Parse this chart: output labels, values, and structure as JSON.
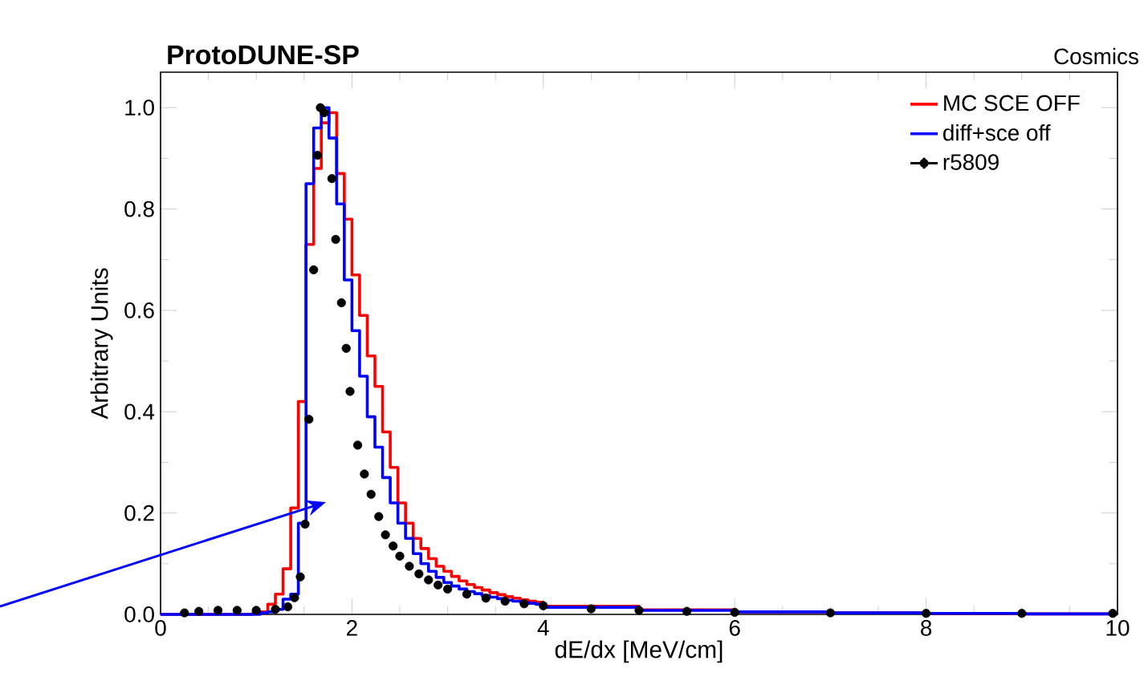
{
  "chart_data": {
    "type": "histogram",
    "title": "ProtoDUNE-SP",
    "xlabel": "dE/dx [MeV/cm]",
    "ylabel": "Arbitrary Units",
    "annotations": [
      "Cosmics"
    ],
    "bins": [
      0,
      0.08,
      0.16,
      0.24,
      0.32,
      0.4,
      0.48,
      0.56,
      0.64,
      0.72,
      0.8,
      0.88,
      0.96,
      1.04,
      1.12,
      1.2,
      1.28,
      1.36,
      1.44,
      1.52,
      1.6,
      1.68,
      1.76,
      1.84,
      1.92,
      2,
      2.08,
      2.16,
      2.24,
      2.32,
      2.4,
      2.48,
      2.56,
      2.64,
      2.72,
      2.8,
      2.88,
      2.96,
      3.04,
      3.12,
      3.2,
      3.28,
      3.36,
      3.44,
      3.52,
      3.6,
      3.68,
      3.76,
      3.84,
      3.92,
      4,
      5,
      6,
      7,
      8,
      9,
      10
    ],
    "series": [
      {
        "name": "MC SCE OFF",
        "color": "#ff0000",
        "values": [
          0,
          0,
          0,
          0,
          0,
          0,
          0,
          0,
          0,
          0,
          0,
          0,
          0.002,
          0.005,
          0.02,
          0.04,
          0.09,
          0.21,
          0.42,
          0.73,
          0.88,
          0.97,
          0.99,
          0.87,
          0.78,
          0.67,
          0.59,
          0.51,
          0.45,
          0.36,
          0.29,
          0.22,
          0.18,
          0.15,
          0.13,
          0.11,
          0.095,
          0.085,
          0.075,
          0.066,
          0.059,
          0.053,
          0.048,
          0.043,
          0.039,
          0.035,
          0.032,
          0.029,
          0.026,
          0.024,
          0.016,
          0.009,
          0.005,
          0.003,
          0.002,
          0.001
        ]
      },
      {
        "name": "diff+sce off",
        "color": "#0000ff",
        "values": [
          0,
          0,
          0,
          0,
          0,
          0,
          0,
          0,
          0,
          0,
          0,
          0,
          0,
          0.003,
          0.005,
          0.01,
          0.03,
          0.04,
          0.18,
          0.85,
          0.96,
          1.0,
          0.94,
          0.81,
          0.66,
          0.56,
          0.47,
          0.39,
          0.33,
          0.27,
          0.22,
          0.18,
          0.15,
          0.12,
          0.1,
          0.085,
          0.073,
          0.063,
          0.056,
          0.05,
          0.045,
          0.041,
          0.037,
          0.034,
          0.031,
          0.028,
          0.026,
          0.024,
          0.022,
          0.02,
          0.014,
          0.008,
          0.005,
          0.003,
          0.002,
          0.001
        ]
      },
      {
        "name": "r5809",
        "color": "#000000",
        "type": "scatter",
        "marker": "circle",
        "x": [
          0.25,
          0.4,
          0.6,
          0.8,
          1.0,
          1.2,
          1.33,
          1.4,
          1.46,
          1.51,
          1.55,
          1.6,
          1.64,
          1.67,
          1.71,
          1.79,
          1.83,
          1.89,
          1.94,
          1.98,
          2.06,
          2.13,
          2.2,
          2.28,
          2.35,
          2.43,
          2.5,
          2.6,
          2.7,
          2.8,
          2.9,
          3.0,
          3.2,
          3.4,
          3.6,
          3.8,
          4.0,
          4.5,
          5.0,
          5.5,
          6,
          7,
          8,
          9,
          9.95
        ],
        "values": [
          0.003,
          0.006,
          0.008,
          0.008,
          0.008,
          0.01,
          0.015,
          0.033,
          0.074,
          0.178,
          0.385,
          0.68,
          0.906,
          1.0,
          0.99,
          0.86,
          0.74,
          0.615,
          0.525,
          0.44,
          0.334,
          0.277,
          0.237,
          0.193,
          0.157,
          0.135,
          0.115,
          0.095,
          0.08,
          0.068,
          0.058,
          0.05,
          0.04,
          0.032,
          0.026,
          0.021,
          0.017,
          0.011,
          0.008,
          0.006,
          0.004,
          0.003,
          0.002,
          0.002,
          0.002
        ]
      }
    ],
    "xlim": [
      0,
      10
    ],
    "ylim": [
      0,
      1.07
    ],
    "xticks": [
      0,
      2,
      4,
      6,
      8,
      10
    ],
    "yticks": [
      {
        "value": 0,
        "label": "0.0"
      },
      {
        "value": 0.2,
        "label": "0.2"
      },
      {
        "value": 0.4,
        "label": "0.4"
      },
      {
        "value": 0.6,
        "label": "0.6"
      },
      {
        "value": 0.8,
        "label": "0.8"
      },
      {
        "value": 1.0,
        "label": "1.0"
      }
    ],
    "legend": "top right"
  }
}
